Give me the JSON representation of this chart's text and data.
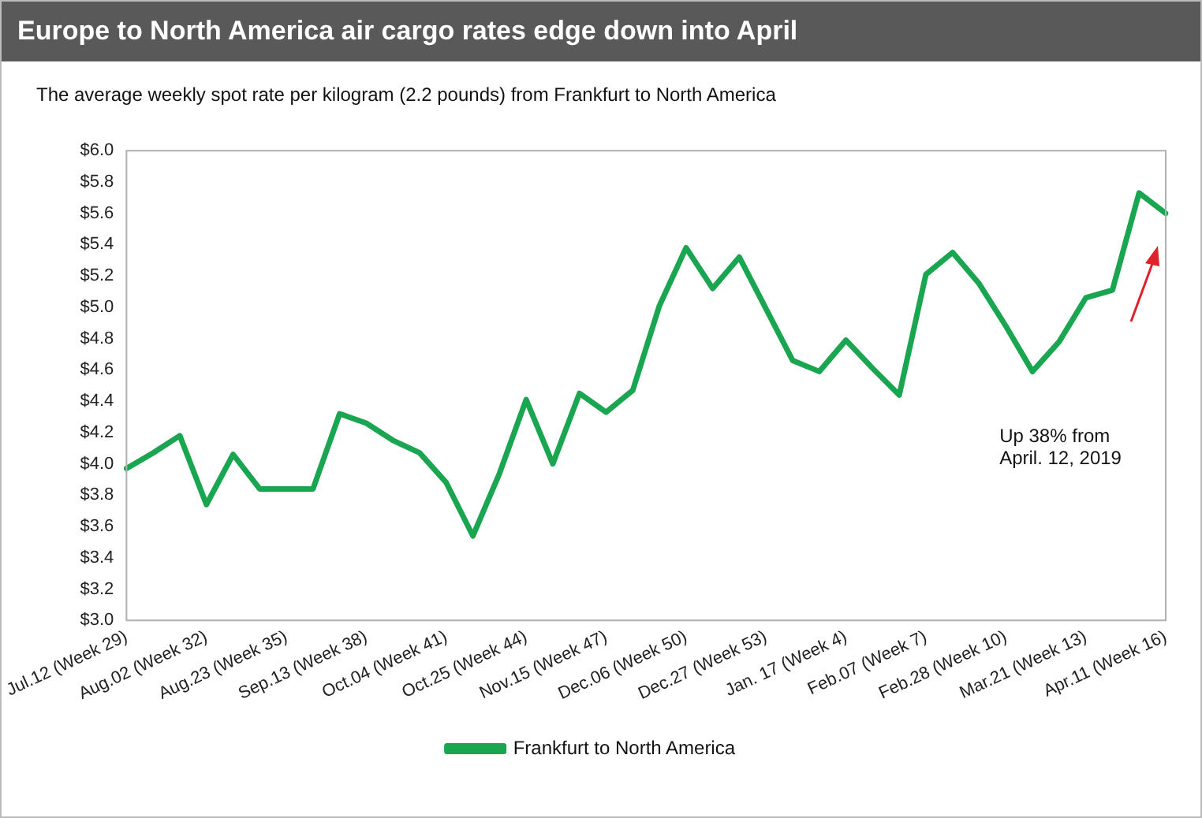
{
  "chart_data": {
    "type": "line",
    "title": "Europe to North America air cargo rates edge down into April",
    "subtitle": "The average weekly spot rate per kilogram (2.2 pounds) from Frankfurt to North America",
    "categories": [
      "Jul.12 (Week 29)",
      null,
      null,
      "Aug.02 (Week 32)",
      null,
      null,
      "Aug.23 (Week 35)",
      null,
      null,
      "Sep.13 (Week 38)",
      null,
      null,
      "Oct.04 (Week 41)",
      null,
      null,
      "Oct.25 (Week 44)",
      null,
      null,
      "Nov.15 (Week 47)",
      null,
      null,
      "Dec.06 (Week 50)",
      null,
      null,
      "Dec.27 (Week 53)",
      null,
      null,
      "Jan. 17 (Week 4)",
      null,
      null,
      "Feb.07 (Week 7)",
      null,
      null,
      "Feb.28 (Week 10)",
      null,
      null,
      "Mar.21 (Week 13)",
      null,
      null,
      "Apr.11 (Week 16)"
    ],
    "series": [
      {
        "name": "Frankfurt to North America",
        "color": "#1aa550",
        "values": [
          3.97,
          4.07,
          4.18,
          3.74,
          4.06,
          3.84,
          3.84,
          3.84,
          4.32,
          4.26,
          4.15,
          4.07,
          3.88,
          3.54,
          3.94,
          4.41,
          4.0,
          4.45,
          4.33,
          4.47,
          5.01,
          5.38,
          5.12,
          5.32,
          4.99,
          4.66,
          4.59,
          4.79,
          4.61,
          4.44,
          5.21,
          5.35,
          5.15,
          4.88,
          4.59,
          4.78,
          5.06,
          5.11,
          5.73,
          5.6
        ]
      }
    ],
    "ylim": [
      3,
      6
    ],
    "yticks": [
      {
        "value": 3,
        "label": "$3.0"
      },
      {
        "value": 3.2,
        "label": "$3.2"
      },
      {
        "value": 3.4,
        "label": "$3.4"
      },
      {
        "value": 3.6,
        "label": "$3.6"
      },
      {
        "value": 3.8,
        "label": "$3.8"
      },
      {
        "value": 4,
        "label": "$4.0"
      },
      {
        "value": 4.2,
        "label": "$4.2"
      },
      {
        "value": 4.4,
        "label": "$4.4"
      },
      {
        "value": 4.6,
        "label": "$4.6"
      },
      {
        "value": 4.8,
        "label": "$4.8"
      },
      {
        "value": 5,
        "label": "$5.0"
      },
      {
        "value": 5.2,
        "label": "$5.2"
      },
      {
        "value": 5.4,
        "label": "$5.4"
      },
      {
        "value": 5.6,
        "label": "$5.6"
      },
      {
        "value": 5.8,
        "label": "$5.8"
      },
      {
        "value": 6,
        "label": "$6.0"
      }
    ],
    "annotations": [
      "Up 38% from\nApril. 12, 2019"
    ],
    "grid": false,
    "legend": "bottom",
    "marker": "none",
    "line_style": "solid"
  }
}
